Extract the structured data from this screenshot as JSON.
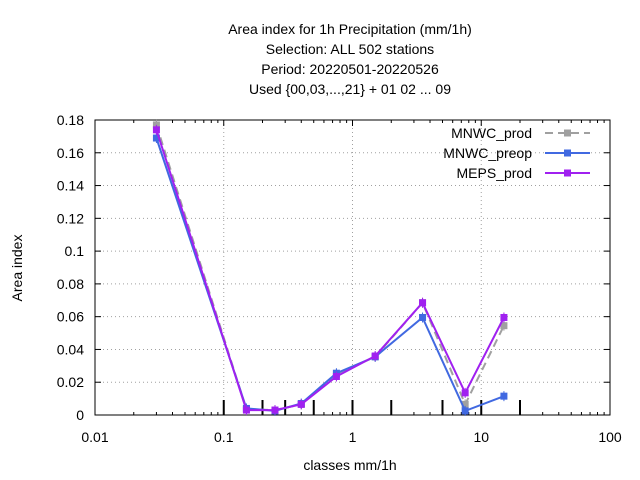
{
  "chart_data": {
    "type": "line",
    "title_lines": [
      "Area index  for 1h Precipitation (mm/1h)",
      "Selection: ALL    502 stations",
      "Period: 20220501-20220526",
      "Used {00,03,...,21} + 01 02 ... 09"
    ],
    "xlabel": "classes mm/1h",
    "ylabel": "Area index",
    "x_scale": "log",
    "xlim": [
      0.01,
      100
    ],
    "ylim": [
      0,
      0.18
    ],
    "x_ticks": [
      {
        "value": 0.01,
        "label": "0.01"
      },
      {
        "value": 0.1,
        "label": "0.1"
      },
      {
        "value": 1,
        "label": "1"
      },
      {
        "value": 10,
        "label": "10"
      },
      {
        "value": 100,
        "label": "100"
      }
    ],
    "y_ticks": [
      {
        "value": 0,
        "label": "0"
      },
      {
        "value": 0.02,
        "label": "0.02"
      },
      {
        "value": 0.04,
        "label": "0.04"
      },
      {
        "value": 0.06,
        "label": "0.06"
      },
      {
        "value": 0.08,
        "label": "0.08"
      },
      {
        "value": 0.1,
        "label": "0.1"
      },
      {
        "value": 0.12,
        "label": "0.12"
      },
      {
        "value": 0.14,
        "label": "0.14"
      },
      {
        "value": 0.16,
        "label": "0.16"
      },
      {
        "value": 0.18,
        "label": "0.18"
      }
    ],
    "class_markers": [
      0.1,
      0.2,
      0.3,
      0.5,
      1,
      2,
      5,
      10,
      20
    ],
    "grid": true,
    "legend_position": "top-right",
    "x": [
      0.03,
      0.15,
      0.25,
      0.4,
      0.75,
      1.5,
      3.5,
      7.5,
      15
    ],
    "series": [
      {
        "name": "MNWC_prod",
        "color": "#a0a0a0",
        "style": "dashed",
        "values": [
          0.177,
          0.0035,
          0.003,
          0.0065,
          0.025,
          0.0355,
          0.0685,
          0.0065,
          0.0545
        ]
      },
      {
        "name": "MNWC_preop",
        "color": "#4169e1",
        "style": "solid",
        "values": [
          0.169,
          0.004,
          0.0025,
          0.007,
          0.0255,
          0.0355,
          0.0595,
          0.0025,
          0.0115
        ]
      },
      {
        "name": "MEPS_prod",
        "color": "#a020f0",
        "style": "solid",
        "values": [
          0.174,
          0.003,
          0.003,
          0.0065,
          0.0235,
          0.036,
          0.0685,
          0.0135,
          0.0595
        ]
      }
    ]
  }
}
